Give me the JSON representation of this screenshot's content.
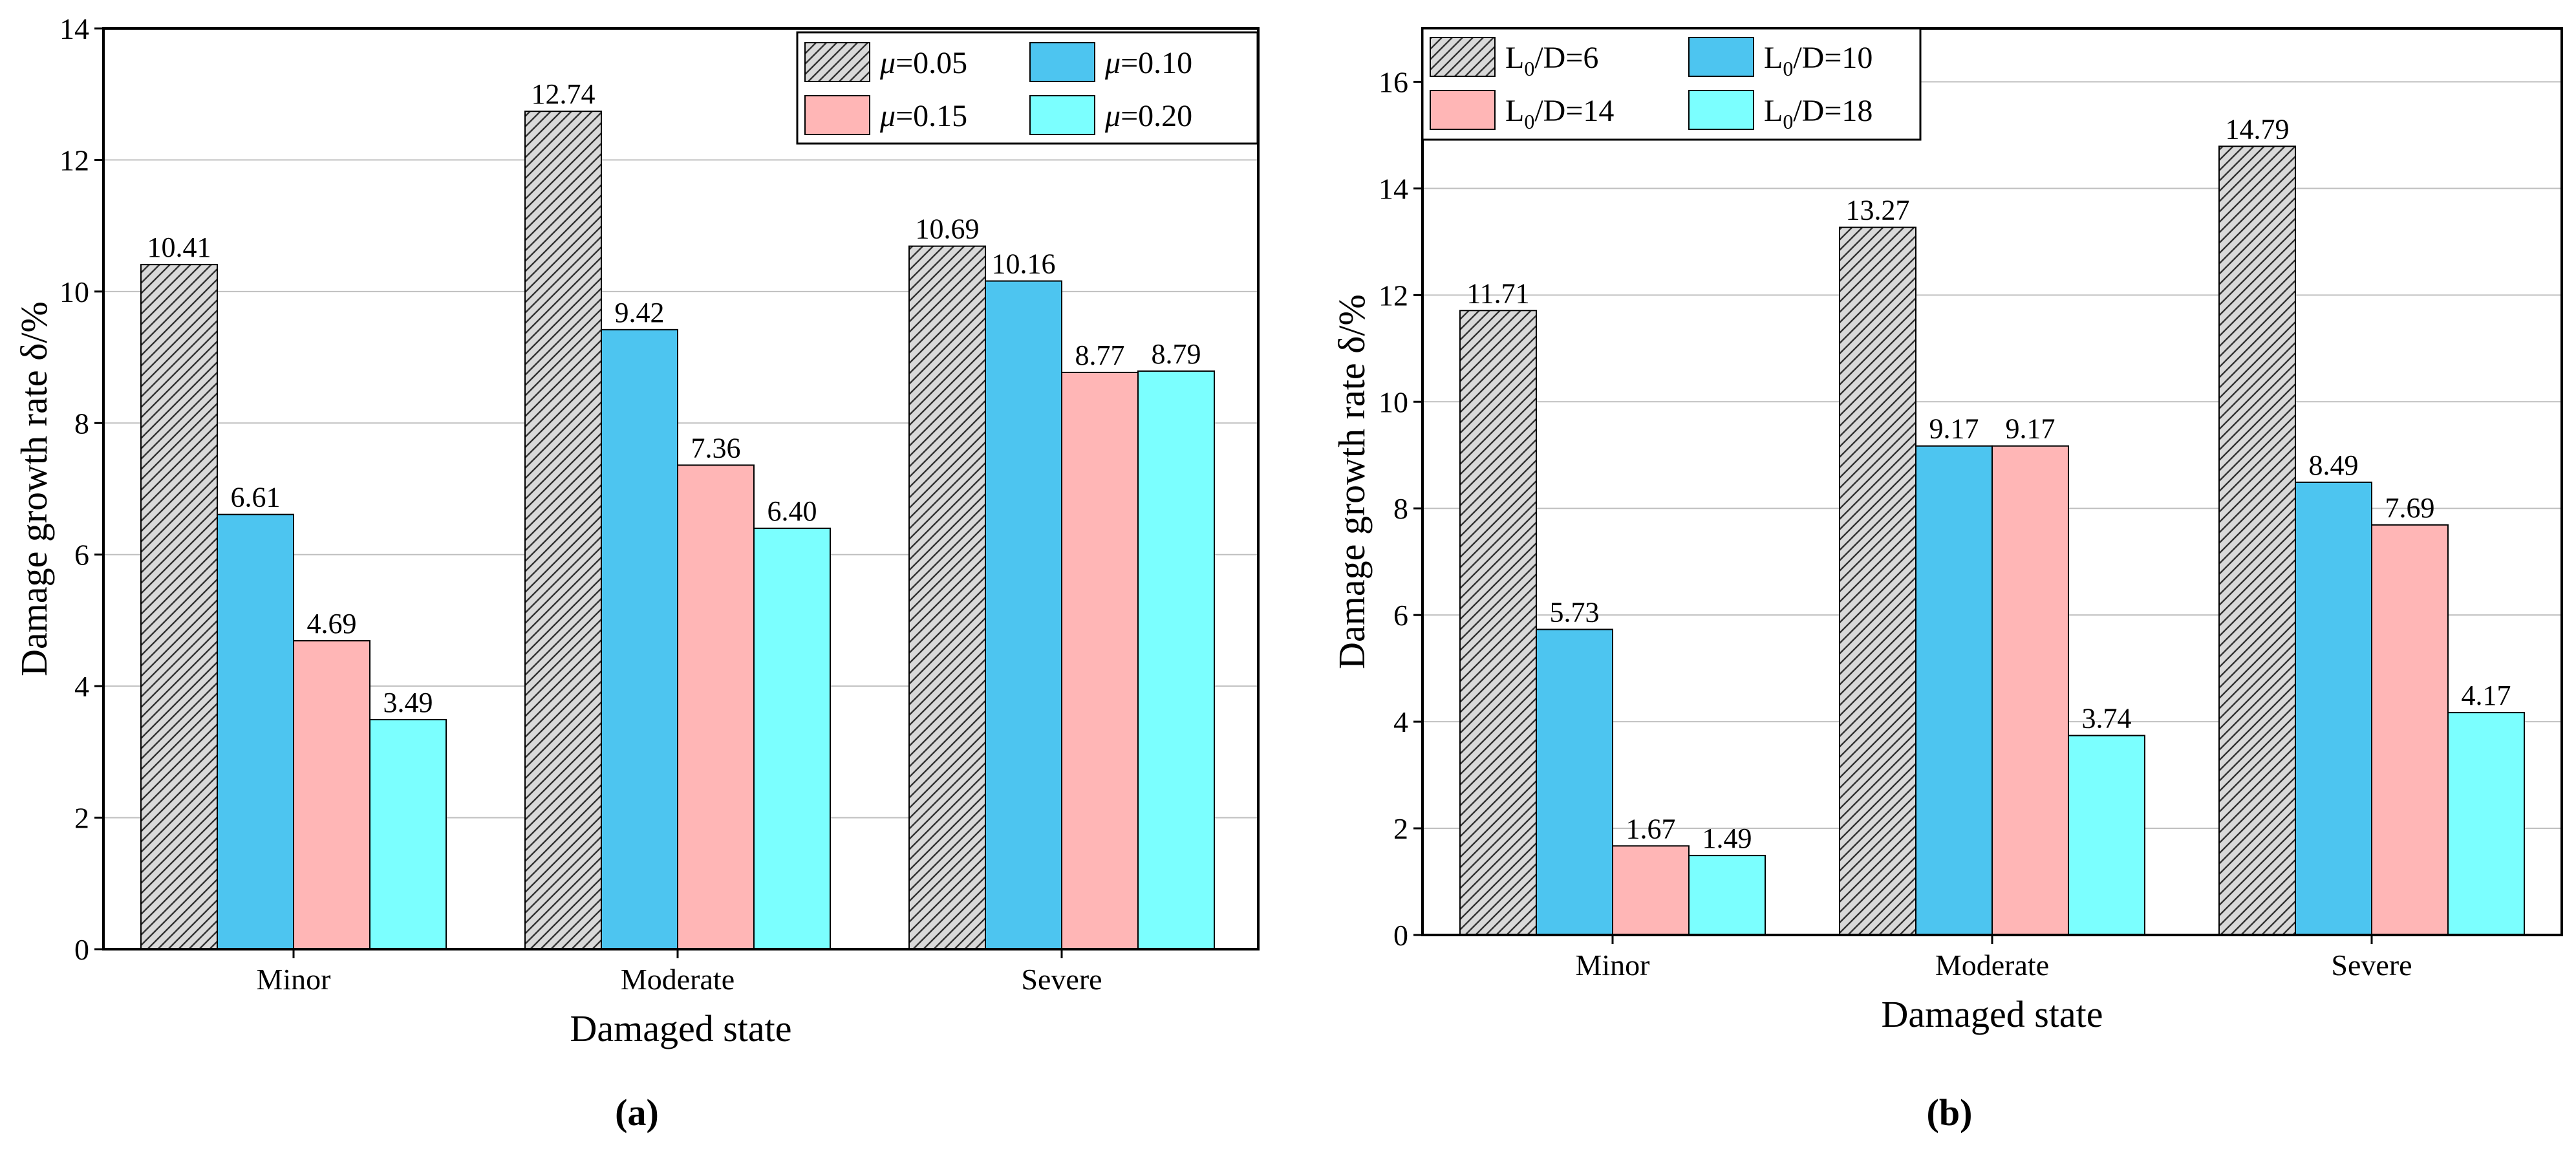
{
  "chart_data": [
    {
      "type": "bar",
      "panel_label": "(a)",
      "categories": [
        "Minor",
        "Moderate",
        "Severe"
      ],
      "xlabel": "Damaged state",
      "ylabel": "Damage growth rate δ/%",
      "ylim": [
        0,
        14
      ],
      "yticks": [
        0,
        2,
        4,
        6,
        8,
        10,
        12,
        14
      ],
      "grid": "horizontal",
      "legend_position": "top-right",
      "legend_symbol": "μ",
      "series": [
        {
          "name": "μ=0.05",
          "legend_value": "=0.05",
          "fill": "hatch",
          "color": "#d9d9d9",
          "values": [
            10.41,
            12.74,
            10.69
          ],
          "labels": [
            "10.41",
            "12.74",
            "10.69"
          ]
        },
        {
          "name": "μ=0.10",
          "legend_value": "=0.10",
          "fill": "solid",
          "color": "#4dc5f0",
          "values": [
            6.61,
            9.42,
            10.16
          ],
          "labels": [
            "6.61",
            "9.42",
            "10.16"
          ]
        },
        {
          "name": "μ=0.15",
          "legend_value": "=0.15",
          "fill": "solid",
          "color": "#ffb6b6",
          "values": [
            4.69,
            7.36,
            8.77
          ],
          "labels": [
            "4.69",
            "7.36",
            "8.77"
          ]
        },
        {
          "name": "μ=0.20",
          "legend_value": "=0.20",
          "fill": "solid",
          "color": "#7bffff",
          "values": [
            3.49,
            6.4,
            8.79
          ],
          "labels": [
            "3.49",
            "6.40",
            "8.79"
          ]
        }
      ]
    },
    {
      "type": "bar",
      "panel_label": "(b)",
      "categories": [
        "Minor",
        "Moderate",
        "Severe"
      ],
      "xlabel": "Damaged state",
      "ylabel": "Damage growth rate δ/%",
      "ylim": [
        0,
        17
      ],
      "yticks": [
        0,
        2,
        4,
        6,
        8,
        10,
        12,
        14,
        16
      ],
      "grid": "horizontal",
      "legend_position": "top-left",
      "series": [
        {
          "name": "L0/D=6",
          "legend_main": "L",
          "legend_sub": "0",
          "legend_rest": "/D=6",
          "fill": "hatch",
          "color": "#d9d9d9",
          "values": [
            11.71,
            13.27,
            14.79
          ],
          "labels": [
            "11.71",
            "13.27",
            "14.79"
          ]
        },
        {
          "name": "L0/D=10",
          "legend_main": "L",
          "legend_sub": "0",
          "legend_rest": "/D=10",
          "fill": "solid",
          "color": "#4dc5f0",
          "values": [
            5.73,
            9.17,
            8.49
          ],
          "labels": [
            "5.73",
            "9.17",
            "8.49"
          ]
        },
        {
          "name": "L0/D=14",
          "legend_main": "L",
          "legend_sub": "0",
          "legend_rest": "/D=14",
          "fill": "solid",
          "color": "#ffb6b6",
          "values": [
            1.67,
            9.17,
            7.69
          ],
          "labels": [
            "1.67",
            "9.17",
            "7.69"
          ]
        },
        {
          "name": "L0/D=18",
          "legend_main": "L",
          "legend_sub": "0",
          "legend_rest": "/D=18",
          "fill": "solid",
          "color": "#7bffff",
          "values": [
            1.49,
            3.74,
            4.17
          ],
          "labels": [
            "1.49",
            "3.74",
            "4.17"
          ]
        }
      ]
    }
  ]
}
